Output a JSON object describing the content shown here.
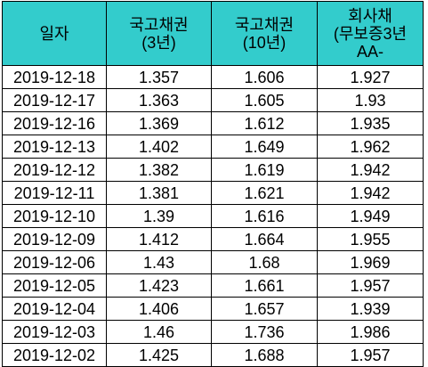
{
  "header_color": "#33CCCC",
  "columns": [
    {
      "lines": [
        "일자"
      ]
    },
    {
      "lines": [
        "국고채권",
        "(3년)"
      ]
    },
    {
      "lines": [
        "국고채권",
        "(10년)"
      ]
    },
    {
      "lines": [
        "회사채",
        "(무보증3년",
        "AA-"
      ]
    }
  ],
  "rows": [
    [
      "2019-12-18",
      "1.357",
      "1.606",
      "1.927"
    ],
    [
      "2019-12-17",
      "1.363",
      "1.605",
      "1.93"
    ],
    [
      "2019-12-16",
      "1.369",
      "1.612",
      "1.935"
    ],
    [
      "2019-12-13",
      "1.402",
      "1.649",
      "1.962"
    ],
    [
      "2019-12-12",
      "1.382",
      "1.619",
      "1.942"
    ],
    [
      "2019-12-11",
      "1.381",
      "1.621",
      "1.942"
    ],
    [
      "2019-12-10",
      "1.39",
      "1.616",
      "1.949"
    ],
    [
      "2019-12-09",
      "1.412",
      "1.664",
      "1.955"
    ],
    [
      "2019-12-06",
      "1.43",
      "1.68",
      "1.969"
    ],
    [
      "2019-12-05",
      "1.423",
      "1.661",
      "1.957"
    ],
    [
      "2019-12-04",
      "1.406",
      "1.657",
      "1.939"
    ],
    [
      "2019-12-03",
      "1.46",
      "1.736",
      "1.986"
    ],
    [
      "2019-12-02",
      "1.425",
      "1.688",
      "1.957"
    ]
  ]
}
